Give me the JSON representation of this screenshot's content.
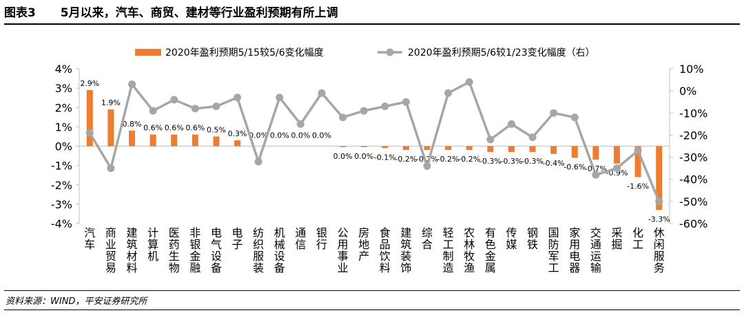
{
  "header": {
    "figure_label": "图表3",
    "title": "5月以来，汽车、商贸、建材等行业盈利预期有所上调"
  },
  "source": "资料来源：WIND，平安证券研究所",
  "colors": {
    "bar": "#ED7D31",
    "line": "#A6A6A6",
    "axis": "#BFBFBF"
  },
  "chart_data": {
    "type": "bar+line",
    "categories": [
      "汽车",
      "商业贸易",
      "建筑材料",
      "计算机",
      "医药生物",
      "非银金融",
      "电气设备",
      "电子",
      "纺织服装",
      "机械设备",
      "通信",
      "银行",
      "公用事业",
      "房地产",
      "食品饮料",
      "建筑装饰",
      "综合",
      "轻工制造",
      "农林牧渔",
      "有色金属",
      "传媒",
      "钢铁",
      "国防军工",
      "家用电器",
      "交通运输",
      "采掘",
      "化工",
      "休闲服务"
    ],
    "series": [
      {
        "name": "2020年盈利预期5/15较5/6变化幅度",
        "type": "bar",
        "axis": "left",
        "values": [
          2.9,
          1.9,
          0.8,
          0.6,
          0.6,
          0.6,
          0.5,
          0.3,
          0.0,
          0.0,
          0.0,
          0.0,
          -0.05,
          -0.05,
          -0.1,
          -0.2,
          -0.2,
          -0.2,
          -0.2,
          -0.3,
          -0.3,
          -0.3,
          -0.4,
          -0.6,
          -0.7,
          -0.9,
          -1.6,
          -3.3
        ],
        "labels": [
          "2.9%",
          "1.9%",
          "0.8%",
          "0.6%",
          "0.6%",
          "0.6%",
          "0.5%",
          "0.3%",
          "0.0%",
          "0.0%",
          "0.0%",
          "0.0%",
          "0.0%",
          "0.0%",
          "-0.1%",
          "-0.2%",
          "-0.2%",
          "-0.2%",
          "-0.2%",
          "-0.3%",
          "-0.3%",
          "-0.3%",
          "-0.4%",
          "-0.6%",
          "-0.7%",
          "-0.9%",
          "-1.6%",
          "-3.3%"
        ]
      },
      {
        "name": "2020年盈利预期5/6较1/23变化幅度（右）",
        "type": "line",
        "axis": "right",
        "values": [
          -19,
          -35,
          3,
          -9,
          -4,
          -8,
          -7,
          -3,
          -32,
          -3,
          -15,
          -1,
          -12,
          -9,
          -7,
          -5,
          -34,
          -1,
          4,
          -22,
          -15,
          -21,
          -10,
          -12,
          -38,
          -35,
          -27,
          -50
        ]
      }
    ],
    "ylim_left": [
      -4,
      4
    ],
    "yticks_left": [
      "4%",
      "3%",
      "2%",
      "1%",
      "0%",
      "-1%",
      "-2%",
      "-3%",
      "-4%"
    ],
    "ylim_right": [
      -60,
      10
    ],
    "yticks_right": [
      "10%",
      "0%",
      "-10%",
      "-20%",
      "-30%",
      "-40%",
      "-50%",
      "-60%"
    ],
    "legend_position": "top-center",
    "grid": false
  }
}
